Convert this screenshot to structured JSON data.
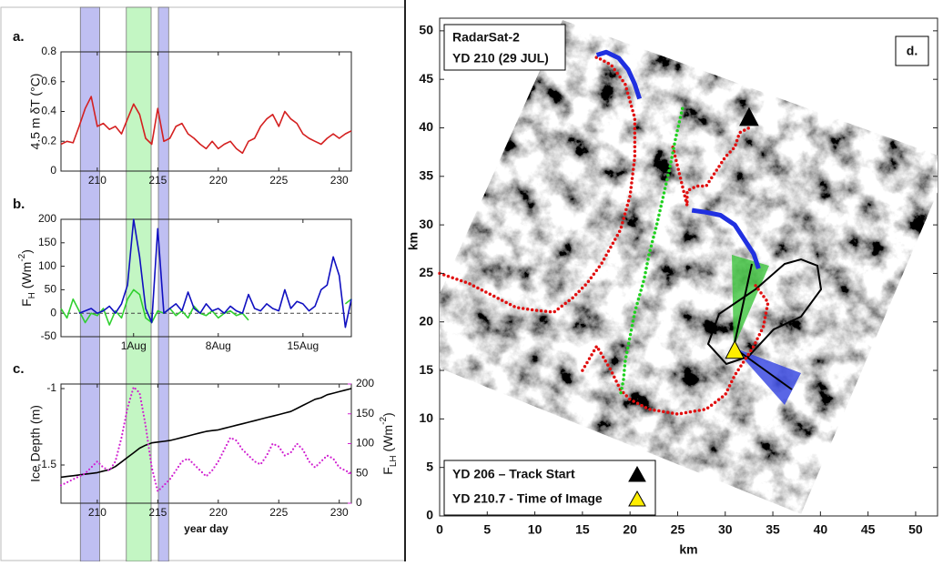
{
  "highlight_bands": [
    {
      "x": [
        208.6,
        210.2
      ],
      "color": "#b4b4f0"
    },
    {
      "x": [
        212.4,
        214.45
      ],
      "color": "#b8f4b8"
    },
    {
      "x": [
        215.05,
        215.9
      ],
      "color": "#b4b4f0"
    }
  ],
  "chart_data": [
    {
      "type": "line",
      "label": "a.",
      "ylabel": "4.5 m δT (°C)",
      "x": [
        207,
        207.5,
        208,
        208.5,
        209,
        209.5,
        210,
        210.5,
        211,
        211.5,
        212,
        212.5,
        213,
        213.5,
        214,
        214.5,
        215,
        215.5,
        216,
        216.5,
        217,
        217.5,
        218,
        218.5,
        219,
        219.5,
        220,
        220.5,
        221,
        221.5,
        222,
        222.5,
        223,
        223.5,
        224,
        224.5,
        225,
        225.5,
        226,
        226.5,
        227,
        227.5,
        228,
        228.5,
        229,
        229.5,
        230,
        230.5,
        231
      ],
      "xlim": [
        207,
        231
      ],
      "xticks": [
        210,
        215,
        220,
        225,
        230
      ],
      "ylim": [
        0,
        0.8
      ],
      "yticks": [
        0,
        0.2,
        0.4,
        0.6,
        0.8
      ],
      "series": [
        {
          "color": "#d42020",
          "line_style": "solid",
          "values": [
            0.18,
            0.2,
            0.19,
            0.3,
            0.42,
            0.5,
            0.3,
            0.32,
            0.28,
            0.3,
            0.25,
            0.35,
            0.45,
            0.38,
            0.22,
            0.18,
            0.42,
            0.2,
            0.22,
            0.3,
            0.32,
            0.25,
            0.22,
            0.18,
            0.15,
            0.2,
            0.15,
            0.18,
            0.2,
            0.15,
            0.12,
            0.2,
            0.22,
            0.3,
            0.35,
            0.38,
            0.3,
            0.4,
            0.35,
            0.32,
            0.25,
            0.22,
            0.2,
            0.18,
            0.22,
            0.25,
            0.22,
            0.25,
            0.27
          ]
        }
      ]
    },
    {
      "type": "line",
      "label": "b.",
      "ylabel": {
        "base": "F",
        "sub": "H",
        "unit": " (Wm",
        "sup": "-2",
        "close": ")"
      },
      "x": [
        207,
        207.5,
        208,
        208.5,
        209,
        209.5,
        210,
        210.5,
        211,
        211.5,
        212,
        212.5,
        213,
        213.5,
        214,
        214.5,
        215,
        215.5,
        216,
        216.5,
        217,
        217.5,
        218,
        218.5,
        219,
        219.5,
        220,
        220.5,
        221,
        221.5,
        222,
        222.5,
        223,
        223.5,
        224,
        224.5,
        225,
        225.5,
        226,
        226.5,
        227,
        227.5,
        228,
        228.5,
        229,
        229.5,
        230,
        230.5,
        231
      ],
      "xlim": [
        207,
        231
      ],
      "xticks": [
        {
          "value": 213,
          "label": "1Aug"
        },
        {
          "value": 220,
          "label": "8Aug"
        },
        {
          "value": 227,
          "label": "15Aug"
        }
      ],
      "ylim": [
        -50,
        200
      ],
      "yticks": [
        -50,
        0,
        50,
        100,
        150,
        200
      ],
      "zero_line": true,
      "series": [
        {
          "color": "#30d030",
          "line_style": "solid",
          "values": [
            10,
            -10,
            30,
            5,
            -20,
            0,
            -5,
            10,
            -25,
            5,
            -10,
            30,
            50,
            40,
            -10,
            -20,
            5,
            0,
            10,
            -5,
            5,
            -10,
            15,
            0,
            -5,
            5,
            -10,
            0,
            5,
            -5,
            0,
            -15,
            null,
            null,
            null,
            null,
            null,
            null,
            null,
            null,
            null,
            null,
            null,
            null,
            null,
            null,
            null,
            20,
            30
          ]
        },
        {
          "color": "#1010c0",
          "line_style": "solid",
          "values": [
            null,
            null,
            null,
            0,
            5,
            10,
            0,
            5,
            15,
            0,
            20,
            60,
            200,
            120,
            10,
            -20,
            180,
            0,
            10,
            20,
            5,
            45,
            10,
            0,
            20,
            5,
            10,
            0,
            15,
            5,
            0,
            40,
            10,
            5,
            20,
            10,
            5,
            50,
            10,
            25,
            20,
            5,
            15,
            50,
            60,
            120,
            80,
            -30,
            30
          ]
        }
      ]
    },
    {
      "type": "line",
      "label": "c.",
      "ylabel": "Ice Depth (m)",
      "xlabel": "year day",
      "y2label": {
        "base": "F",
        "sub": "LH",
        "unit": " (Wm",
        "sup": "-2",
        "close": ")"
      },
      "x": [
        207,
        207.5,
        208,
        208.5,
        209,
        209.5,
        210,
        210.5,
        211,
        211.5,
        212,
        212.5,
        213,
        213.5,
        214,
        214.5,
        215,
        215.5,
        216,
        216.5,
        217,
        217.5,
        218,
        218.5,
        219,
        219.5,
        220,
        220.5,
        221,
        221.5,
        222,
        222.5,
        223,
        223.5,
        224,
        224.5,
        225,
        225.5,
        226,
        226.5,
        227,
        227.5,
        228,
        228.5,
        229,
        229.5,
        230,
        230.5,
        231
      ],
      "xlim": [
        207,
        231
      ],
      "xticks": [
        210,
        215,
        220,
        225,
        230
      ],
      "ylim": [
        -1.75,
        -0.97
      ],
      "yticks": [
        -1.5,
        -1
      ],
      "y2lim": [
        0,
        200
      ],
      "y2ticks": [
        0,
        50,
        100,
        150,
        200
      ],
      "y2color": "#d020d0",
      "series": [
        {
          "color": "#000000",
          "line_style": "solid",
          "values": [
            -1.58,
            -1.575,
            -1.57,
            -1.565,
            -1.56,
            -1.555,
            -1.55,
            -1.54,
            -1.53,
            -1.51,
            -1.48,
            -1.45,
            -1.42,
            -1.39,
            -1.37,
            -1.355,
            -1.35,
            -1.345,
            -1.34,
            -1.33,
            -1.32,
            -1.31,
            -1.3,
            -1.29,
            -1.28,
            -1.275,
            -1.27,
            -1.26,
            -1.25,
            -1.24,
            -1.23,
            -1.22,
            -1.21,
            -1.2,
            -1.19,
            -1.18,
            -1.17,
            -1.16,
            -1.15,
            -1.13,
            -1.11,
            -1.09,
            -1.07,
            -1.06,
            -1.04,
            -1.03,
            -1.02,
            -1.01,
            -1.0
          ]
        },
        {
          "color": "#d020d0",
          "line_style": "dotted",
          "axis": "y2",
          "values": [
            30,
            35,
            40,
            45,
            50,
            60,
            70,
            60,
            55,
            70,
            110,
            160,
            195,
            185,
            130,
            60,
            20,
            30,
            40,
            55,
            70,
            75,
            65,
            55,
            45,
            55,
            70,
            90,
            110,
            105,
            90,
            80,
            70,
            65,
            80,
            100,
            95,
            80,
            85,
            100,
            90,
            70,
            60,
            70,
            80,
            75,
            60,
            55,
            50
          ]
        }
      ]
    },
    {
      "type": "map",
      "label": "d.",
      "annotation": [
        "RadarSat-2",
        "YD 210 (29 JUL)"
      ],
      "xlabel": "km",
      "ylabel": "km",
      "xlim": [
        0,
        52.3
      ],
      "ylim": [
        0,
        51.3
      ],
      "xticks": [
        0,
        5,
        10,
        15,
        20,
        25,
        30,
        35,
        40,
        45,
        50
      ],
      "yticks": [
        0,
        5,
        10,
        15,
        20,
        25,
        30,
        35,
        40,
        45,
        50
      ],
      "series": [
        {
          "color": "#e01010",
          "line_style": "dotted",
          "x": [
            0,
            3,
            6,
            8,
            10,
            12,
            14,
            15.5,
            17,
            19,
            20,
            20.5,
            20.5,
            19.5,
            18,
            16.5,
            16.2
          ],
          "y": [
            25,
            24,
            22.5,
            21.5,
            21.2,
            21,
            22.5,
            24,
            26,
            29.5,
            33,
            37,
            41,
            44.5,
            46.5,
            47.3,
            47
          ]
        },
        {
          "color": "#e01010",
          "line_style": "dotted",
          "x": [
            15,
            16.5,
            18,
            19,
            20,
            22,
            25,
            28,
            30,
            31,
            32,
            33,
            34,
            34.5,
            33
          ],
          "y": [
            15,
            17.5,
            15,
            13,
            12,
            11,
            10.5,
            11,
            12.5,
            14.5,
            16,
            17.5,
            19.5,
            22,
            24
          ]
        },
        {
          "color": "#e01010",
          "line_style": "dotted",
          "x": [
            24.5,
            25,
            25.5,
            26,
            26,
            27,
            28,
            29,
            30,
            31,
            31.5,
            32.5
          ],
          "y": [
            38,
            36,
            34,
            32,
            33.5,
            34,
            34,
            35.5,
            37,
            38,
            39.5,
            40
          ]
        },
        {
          "color": "#20d020",
          "line_style": "dotted",
          "x": [
            25.5,
            24.8,
            24.2,
            23.5,
            22.8,
            22,
            21.5,
            20.5,
            20,
            19.5,
            19.3,
            19
          ],
          "y": [
            42,
            39,
            36,
            33,
            30,
            27,
            24.5,
            21,
            18.5,
            16,
            14,
            12.5
          ]
        },
        {
          "color": "#2030e0",
          "line_style": "solid",
          "x": [
            16.5,
            17.5,
            18.8,
            19.8,
            20.5,
            21
          ],
          "y": [
            47.5,
            47.8,
            47.2,
            46,
            44.5,
            43
          ]
        },
        {
          "color": "#2030e0",
          "line_style": "solid",
          "x": [
            26.5,
            28,
            29.5,
            31,
            32,
            33,
            33.5
          ],
          "y": [
            31.5,
            31.3,
            31,
            30,
            28.5,
            27,
            25.5
          ]
        }
      ],
      "markers": [
        {
          "x": 32.5,
          "y": 41,
          "color": "#000000"
        },
        {
          "x": 31,
          "y": 17,
          "color": "#ffee00"
        }
      ],
      "legend": [
        "YD 206 – Track Start",
        "YD 210.7 - Time of Image"
      ]
    }
  ]
}
